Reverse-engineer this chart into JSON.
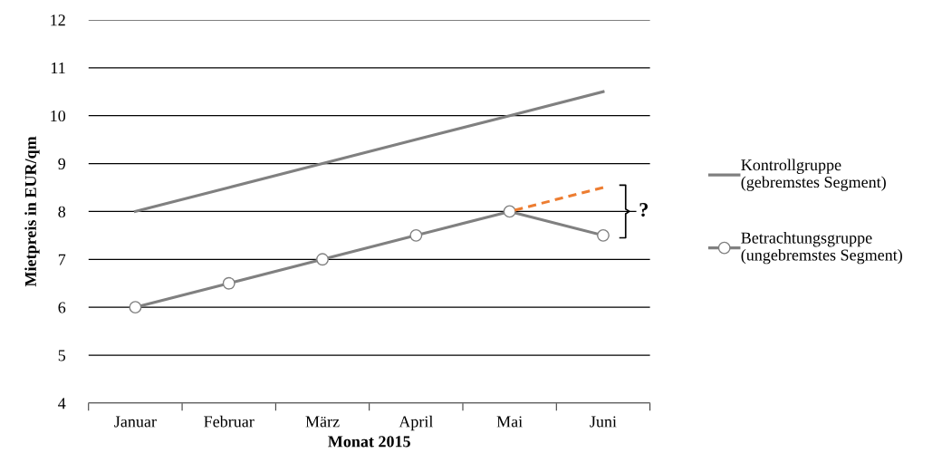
{
  "chart_data": {
    "type": "line",
    "xlabel": "Monat 2015",
    "ylabel": "Mietpreis in EUR/qm",
    "categories": [
      "Januar",
      "Februar",
      "März",
      "April",
      "Mai",
      "Juni"
    ],
    "series": [
      {
        "name": "Kontrollgruppe\n(gebremstes Segment)",
        "color": "#808080",
        "values": [
          8,
          8.5,
          9,
          9.5,
          10,
          10.5
        ],
        "marker": "none"
      },
      {
        "name": "Betrachtungsgruppe\n(ungebremstes Segment)",
        "color": "#808080",
        "values": [
          6,
          6.5,
          7,
          7.5,
          8,
          7.5
        ],
        "marker": "circle"
      },
      {
        "color": "#ed7d31",
        "values": [
          null,
          null,
          null,
          null,
          8,
          8.5
        ],
        "marker": "none",
        "line_style": "dashed"
      }
    ],
    "ylim": [
      4,
      12
    ],
    "yticks": [
      4,
      5,
      6,
      7,
      8,
      9,
      10,
      11,
      12
    ],
    "grid": "y",
    "legend": "right",
    "annotations": [
      "?"
    ]
  }
}
